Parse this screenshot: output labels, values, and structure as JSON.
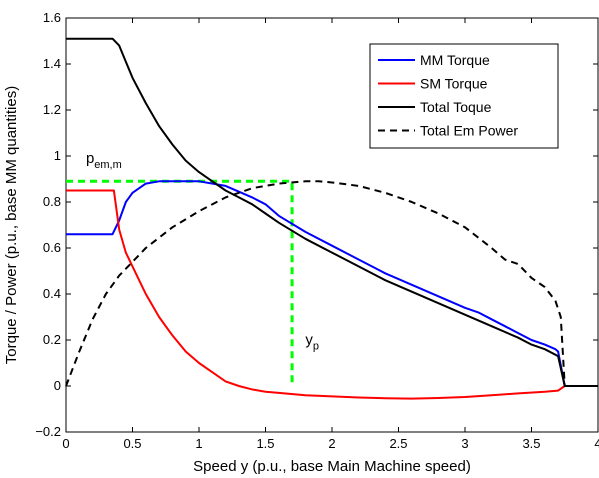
{
  "chart_data": {
    "type": "line",
    "xlabel": "Speed y (p.u., base Main Machine speed)",
    "ylabel": "Torque / Power (p.u., base MM quantities)",
    "xlim": [
      0,
      4
    ],
    "ylim": [
      -0.2,
      1.6
    ],
    "xticks": [
      0,
      0.5,
      1,
      1.5,
      2,
      2.5,
      3,
      3.5,
      4
    ],
    "xtick_labels": [
      "0",
      "0.5",
      "1",
      "1.5",
      "2",
      "2.5",
      "3",
      "3.5",
      "4"
    ],
    "yticks": [
      -0.2,
      0,
      0.2,
      0.4,
      0.6,
      0.8,
      1,
      1.2,
      1.4,
      1.6
    ],
    "ytick_labels": [
      "−0.2",
      "0",
      "0.2",
      "0.4",
      "0.6",
      "0.8",
      "1",
      "1.2",
      "1.4",
      "1.6"
    ],
    "grid": false,
    "legend_position": "top-right",
    "series": [
      {
        "name": "MM Torque",
        "color": "#0000ff",
        "style": "solid",
        "x": [
          0,
          0.35,
          0.4,
          0.45,
          0.5,
          0.55,
          0.6,
          0.7,
          0.8,
          1.0,
          1.2,
          1.4,
          1.5,
          1.6,
          1.8,
          2.0,
          2.2,
          2.4,
          2.6,
          2.8,
          3.0,
          3.1,
          3.2,
          3.3,
          3.4,
          3.5,
          3.6,
          3.68,
          3.7,
          3.75,
          3.76,
          4.0
        ],
        "y": [
          0.66,
          0.66,
          0.72,
          0.8,
          0.84,
          0.86,
          0.88,
          0.89,
          0.89,
          0.89,
          0.87,
          0.82,
          0.79,
          0.74,
          0.67,
          0.61,
          0.55,
          0.49,
          0.44,
          0.39,
          0.34,
          0.32,
          0.29,
          0.26,
          0.23,
          0.2,
          0.18,
          0.16,
          0.15,
          0.0,
          0.0,
          0.0
        ]
      },
      {
        "name": "SM Torque",
        "color": "#ff0000",
        "style": "solid",
        "x": [
          0,
          0.36,
          0.4,
          0.45,
          0.5,
          0.6,
          0.7,
          0.8,
          0.9,
          1.0,
          1.1,
          1.2,
          1.3,
          1.4,
          1.5,
          1.6,
          1.8,
          2.0,
          2.2,
          2.4,
          2.6,
          2.8,
          3.0,
          3.2,
          3.4,
          3.6,
          3.7,
          3.75,
          3.76,
          4.0
        ],
        "y": [
          0.85,
          0.85,
          0.68,
          0.58,
          0.52,
          0.4,
          0.3,
          0.22,
          0.15,
          0.1,
          0.06,
          0.02,
          0.0,
          -0.015,
          -0.025,
          -0.03,
          -0.04,
          -0.045,
          -0.05,
          -0.053,
          -0.055,
          -0.052,
          -0.048,
          -0.04,
          -0.032,
          -0.025,
          -0.02,
          0.0,
          0.0,
          0.0
        ]
      },
      {
        "name": "Total Toque",
        "color": "#000000",
        "style": "solid",
        "x": [
          0,
          0.3,
          0.35,
          0.4,
          0.45,
          0.5,
          0.6,
          0.7,
          0.8,
          0.9,
          1.0,
          1.1,
          1.2,
          1.3,
          1.4,
          1.5,
          1.6,
          1.8,
          2.0,
          2.2,
          2.4,
          2.6,
          2.8,
          3.0,
          3.2,
          3.4,
          3.5,
          3.6,
          3.7,
          3.75,
          3.76,
          4.0
        ],
        "y": [
          1.51,
          1.51,
          1.51,
          1.48,
          1.41,
          1.34,
          1.23,
          1.13,
          1.05,
          0.98,
          0.93,
          0.89,
          0.85,
          0.82,
          0.79,
          0.75,
          0.71,
          0.64,
          0.58,
          0.52,
          0.46,
          0.41,
          0.36,
          0.31,
          0.26,
          0.21,
          0.18,
          0.16,
          0.13,
          0.0,
          0.0,
          0.0
        ]
      },
      {
        "name": "Total Em Power",
        "color": "#000000",
        "style": "dashed",
        "x": [
          0,
          0.1,
          0.2,
          0.3,
          0.4,
          0.5,
          0.6,
          0.8,
          1.0,
          1.2,
          1.4,
          1.6,
          1.8,
          1.9,
          2.0,
          2.2,
          2.4,
          2.6,
          2.8,
          3.0,
          3.2,
          3.3,
          3.4,
          3.5,
          3.6,
          3.68,
          3.72,
          3.75,
          3.76,
          4.0
        ],
        "y": [
          0,
          0.15,
          0.29,
          0.4,
          0.48,
          0.54,
          0.6,
          0.69,
          0.76,
          0.82,
          0.86,
          0.88,
          0.89,
          0.89,
          0.885,
          0.87,
          0.84,
          0.8,
          0.75,
          0.69,
          0.6,
          0.55,
          0.53,
          0.47,
          0.43,
          0.37,
          0.3,
          0.0,
          0.0,
          0.0
        ]
      }
    ],
    "annotations": [
      {
        "type": "dashed-line",
        "color": "#00ff00",
        "points": [
          [
            0,
            0.89
          ],
          [
            1.7,
            0.89
          ],
          [
            1.7,
            0
          ]
        ]
      },
      {
        "type": "text",
        "text": "p",
        "subscript": "em,m",
        "x": 0.15,
        "y": 0.97
      },
      {
        "type": "text",
        "text": "y",
        "subscript": "p",
        "x": 1.8,
        "y": 0.18
      }
    ]
  }
}
